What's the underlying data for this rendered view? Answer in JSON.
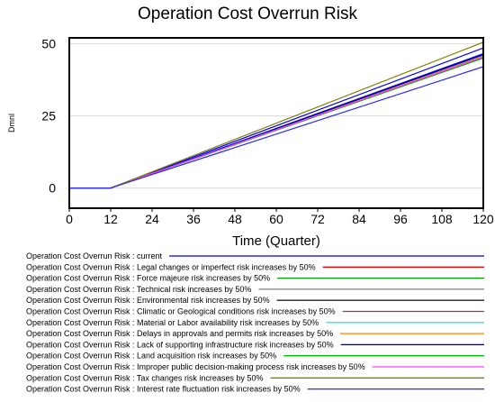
{
  "chart_data": {
    "type": "line",
    "title": "Operation Cost Overrun Risk",
    "xlabel": "Time (Quarter)",
    "ylabel": "Dmnl",
    "xlim": [
      0,
      120
    ],
    "ylim": [
      -7,
      52
    ],
    "x_ticks": [
      0,
      12,
      24,
      36,
      48,
      60,
      72,
      84,
      96,
      108,
      120
    ],
    "y_ticks": [
      0,
      25,
      50
    ],
    "grid": true,
    "legend_position": "bottom",
    "series": [
      {
        "name": "Operation Cost Overrun Risk : current",
        "color": "#0000ff",
        "x": [
          0,
          12,
          120
        ],
        "y": [
          0,
          0,
          46.5
        ]
      },
      {
        "name": "Operation Cost Overrun Risk : Legal changes or imperfect risk increases by 50%",
        "color": "#ff0000",
        "x": [
          0,
          12,
          120
        ],
        "y": [
          0,
          0,
          45.5
        ]
      },
      {
        "name": "Operation Cost Overrun Risk : Force majeure risk increases by 50%",
        "color": "#00a000",
        "x": [
          0,
          12,
          120
        ],
        "y": [
          0,
          0,
          45
        ]
      },
      {
        "name": "Operation Cost Overrun Risk : Technical risk increases by 50%",
        "color": "#808080",
        "x": [
          0,
          12,
          120
        ],
        "y": [
          0,
          0,
          45.8
        ]
      },
      {
        "name": "Operation Cost Overrun Risk : Environmental risk increases by 50%",
        "color": "#202020",
        "x": [
          0,
          12,
          120
        ],
        "y": [
          0,
          0,
          46
        ]
      },
      {
        "name": "Operation Cost Overrun Risk : Climatic or Geological conditions risk increases by 50%",
        "color": "#a0306a",
        "x": [
          0,
          12,
          120
        ],
        "y": [
          0,
          0,
          45.6
        ]
      },
      {
        "name": "Operation Cost Overrun Risk : Material or Labor availability risk increases by 50%",
        "color": "#40e0e0",
        "x": [
          0,
          12,
          120
        ],
        "y": [
          0,
          0,
          45.9
        ]
      },
      {
        "name": "Operation Cost Overrun Risk : Delays in approvals and permits risk increases by 50%",
        "color": "#ff8000",
        "x": [
          0,
          12,
          120
        ],
        "y": [
          0,
          0,
          45.7
        ]
      },
      {
        "name": "Operation Cost Overrun Risk : Lack of supporting infrastructure risk increases by 50%",
        "color": "#000080",
        "x": [
          0,
          12,
          120
        ],
        "y": [
          0,
          0,
          46.2
        ]
      },
      {
        "name": "Operation Cost Overrun Risk : Land acquisition risk increases by 50%",
        "color": "#00c000",
        "x": [
          0,
          12,
          120
        ],
        "y": [
          0,
          0,
          45.3
        ]
      },
      {
        "name": "Operation Cost Overrun Risk : Improper public decision-making process risk increases by 50%",
        "color": "#ff40ff",
        "x": [
          0,
          12,
          120
        ],
        "y": [
          0,
          0,
          45.4
        ]
      },
      {
        "name": "Operation Cost Overrun Risk : Tax changes risk increases by 50%",
        "color": "#808000",
        "x": [
          0,
          12,
          120
        ],
        "y": [
          0,
          0,
          50.5
        ]
      },
      {
        "name": "Operation Cost Overrun Risk : Interest rate fluctuation risk increases by 50%",
        "color": "#2a2aff",
        "x": [
          0,
          12,
          120
        ],
        "y": [
          0,
          0,
          42
        ]
      }
    ]
  },
  "extra_series": [
    {
      "color": "#0000ff",
      "x": [
        0,
        12,
        120
      ],
      "y": [
        0,
        0,
        48.5
      ]
    }
  ]
}
